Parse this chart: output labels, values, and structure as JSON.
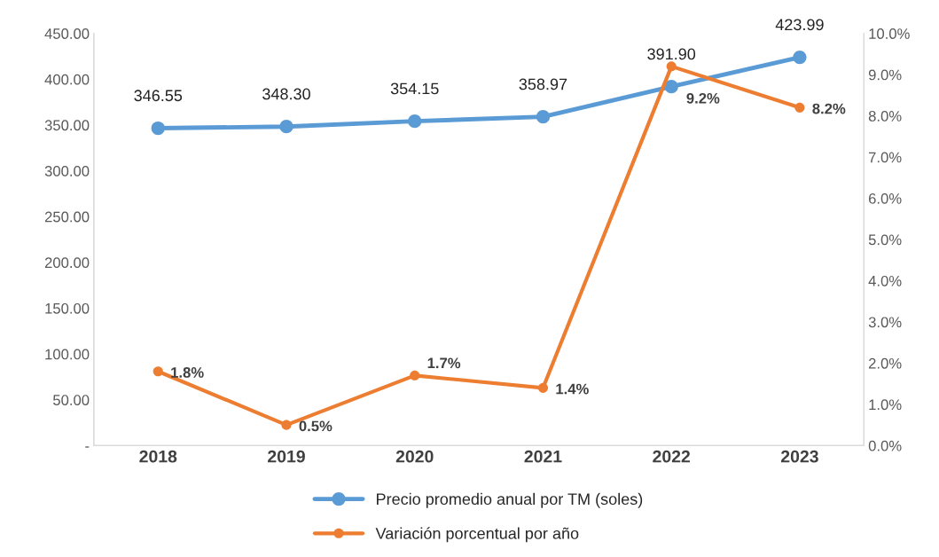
{
  "chart_data": {
    "type": "line",
    "categories": [
      "2018",
      "2019",
      "2020",
      "2021",
      "2022",
      "2023"
    ],
    "series": [
      {
        "name": "Precio promedio anual por TM (soles)",
        "color": "#5b9bd5",
        "values": [
          346.55,
          348.3,
          354.15,
          358.97,
          391.9,
          423.99
        ],
        "value_labels": [
          "346.55",
          "348.30",
          "354.15",
          "358.97",
          "391.90",
          "423.99"
        ]
      },
      {
        "name": "Variación porcentual por año",
        "color": "#ed7d31",
        "axis": "y2",
        "values": [
          1.8,
          0.5,
          1.7,
          1.4,
          9.2,
          8.2
        ],
        "value_labels": [
          "1.8%",
          "0.5%",
          "1.7%",
          "1.4%",
          "9.2%",
          "8.2%"
        ]
      }
    ],
    "ylim": [
      0,
      450
    ],
    "yticks": [
      {
        "value": 0,
        "label": "-"
      },
      {
        "value": 50,
        "label": "50.00"
      },
      {
        "value": 100,
        "label": "100.00"
      },
      {
        "value": 150,
        "label": "150.00"
      },
      {
        "value": 200,
        "label": "200.00"
      },
      {
        "value": 250,
        "label": "250.00"
      },
      {
        "value": 300,
        "label": "300.00"
      },
      {
        "value": 350,
        "label": "350.00"
      },
      {
        "value": 400,
        "label": "400.00"
      },
      {
        "value": 450,
        "label": "450.00"
      }
    ],
    "y2lim": [
      0,
      10
    ],
    "y2ticks": [
      {
        "value": 0,
        "label": "0.0%"
      },
      {
        "value": 1,
        "label": "1.0%"
      },
      {
        "value": 2,
        "label": "2.0%"
      },
      {
        "value": 3,
        "label": "3.0%"
      },
      {
        "value": 4,
        "label": "4.0%"
      },
      {
        "value": 5,
        "label": "5.0%"
      },
      {
        "value": 6,
        "label": "6.0%"
      },
      {
        "value": 7,
        "label": "7.0%"
      },
      {
        "value": 8,
        "label": "8.0%"
      },
      {
        "value": 9,
        "label": "9.0%"
      },
      {
        "value": 10,
        "label": "10.0%"
      }
    ],
    "marker": "circle",
    "line_style": "solid",
    "grid": false,
    "legend": "bottom"
  }
}
